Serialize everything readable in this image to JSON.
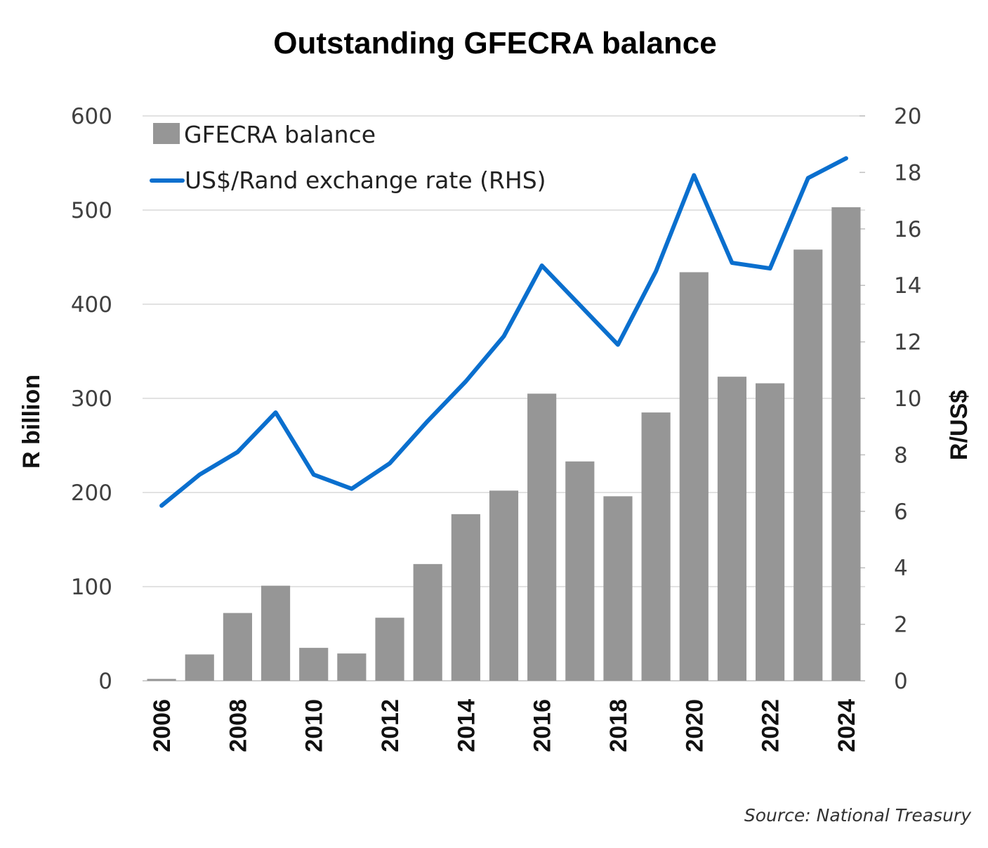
{
  "chart_data": {
    "type": "bar",
    "title": "Outstanding GFECRA balance",
    "ylabel": "R billion",
    "y2label": "R/US$",
    "source": "Source: National Treasury",
    "ylim": [
      0,
      600
    ],
    "y2lim": [
      0,
      20
    ],
    "yticks": [
      "0",
      "100",
      "200",
      "300",
      "400",
      "500",
      "600"
    ],
    "y2ticks": [
      "0",
      "2",
      "4",
      "6",
      "8",
      "10",
      "12",
      "14",
      "16",
      "18",
      "20"
    ],
    "xtick_labels": [
      "2006",
      "2008",
      "2010",
      "2012",
      "2014",
      "2016",
      "2018",
      "2020",
      "2022",
      "2024"
    ],
    "grid": true,
    "legend_position": "top-left",
    "categories": [
      "2006",
      "2007",
      "2008",
      "2009",
      "2010",
      "2011",
      "2012",
      "2013",
      "2014",
      "2015",
      "2016",
      "2017",
      "2018",
      "2019",
      "2020",
      "2021",
      "2022",
      "2023",
      "2024"
    ],
    "series": [
      {
        "name": "GFECRA balance",
        "type": "bar",
        "axis": "left",
        "color": "#969696",
        "values": [
          2,
          28,
          72,
          101,
          35,
          29,
          67,
          124,
          177,
          202,
          305,
          233,
          196,
          285,
          434,
          323,
          316,
          458,
          503
        ]
      },
      {
        "name": "US$/Rand exchange rate (RHS)",
        "type": "line",
        "axis": "right",
        "color": "#0a6fce",
        "values": [
          6.2,
          7.3,
          8.1,
          9.5,
          7.3,
          6.8,
          7.7,
          9.2,
          10.6,
          12.2,
          14.7,
          13.3,
          11.9,
          14.5,
          17.9,
          14.8,
          14.6,
          17.8,
          18.5
        ]
      }
    ]
  }
}
